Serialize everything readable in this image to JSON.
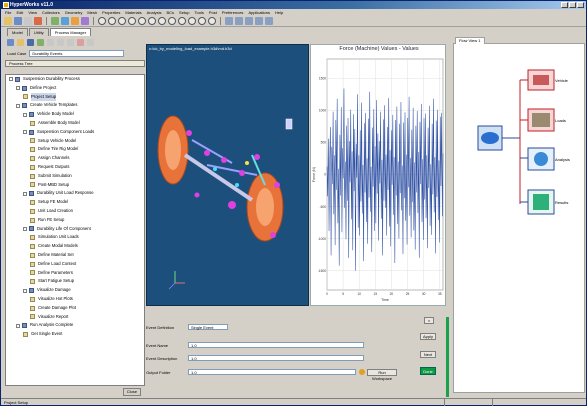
{
  "window": {
    "title": "HyperWorks v11.0"
  },
  "menu": [
    "File",
    "Edit",
    "View",
    "Collectors",
    "Geometry",
    "Mesh",
    "Properties",
    "Materials",
    "Analysis",
    "BCs",
    "Setup",
    "Tools",
    "Post",
    "Preferences",
    "Applications",
    "Help"
  ],
  "left_panel": {
    "tabs": [
      "Model",
      "Utility",
      "Process Manager"
    ],
    "load_label": "Load Case",
    "load_value": "Durability Events",
    "tree_header": "Process Tree",
    "close_label": "Close",
    "tree": [
      {
        "label": "Suspension Durability Process",
        "level": 0,
        "kind": "folder"
      },
      {
        "label": "Define Project",
        "level": 1,
        "kind": "folder"
      },
      {
        "label": "Project Setup",
        "level": 2,
        "kind": "leaf",
        "selected": true
      },
      {
        "label": "Create Vehicle Templates",
        "level": 1,
        "kind": "folder"
      },
      {
        "label": "Vehicle Body Model",
        "level": 2,
        "kind": "folder"
      },
      {
        "label": "Assemble Body Model",
        "level": 3,
        "kind": "leaf"
      },
      {
        "label": "Suspension Component Loads",
        "level": 2,
        "kind": "folder"
      },
      {
        "label": "Setup Vehicle Model",
        "level": 3,
        "kind": "leaf"
      },
      {
        "label": "Define Tire Rig Model",
        "level": 3,
        "kind": "leaf"
      },
      {
        "label": "Assign Channels",
        "level": 3,
        "kind": "leaf"
      },
      {
        "label": "Request Outputs",
        "level": 3,
        "kind": "leaf"
      },
      {
        "label": "Submit Simulation",
        "level": 3,
        "kind": "leaf"
      },
      {
        "label": "Post-MBD Setup",
        "level": 3,
        "kind": "leaf"
      },
      {
        "label": "Durability Unit Load Response",
        "level": 2,
        "kind": "folder"
      },
      {
        "label": "Setup FE Model",
        "level": 3,
        "kind": "leaf"
      },
      {
        "label": "Unit Load Creation",
        "level": 3,
        "kind": "leaf"
      },
      {
        "label": "Run FE Setup",
        "level": 3,
        "kind": "leaf"
      },
      {
        "label": "Durability Life Of Component",
        "level": 2,
        "kind": "folder"
      },
      {
        "label": "Simulation Unit Loads",
        "level": 3,
        "kind": "leaf"
      },
      {
        "label": "Create Modal Models",
        "level": 3,
        "kind": "leaf"
      },
      {
        "label": "Define Material Set",
        "level": 3,
        "kind": "leaf"
      },
      {
        "label": "Define Load Context",
        "level": 3,
        "kind": "leaf"
      },
      {
        "label": "Define Parameters",
        "level": 3,
        "kind": "leaf"
      },
      {
        "label": "Start Fatigue Setup",
        "level": 3,
        "kind": "leaf"
      },
      {
        "label": "Visualize Damage",
        "level": 2,
        "kind": "folder"
      },
      {
        "label": "Visualize Hot Plots",
        "level": 3,
        "kind": "leaf"
      },
      {
        "label": "Create Damage Plot",
        "level": 3,
        "kind": "leaf"
      },
      {
        "label": "Visualize Report",
        "level": 3,
        "kind": "leaf"
      },
      {
        "label": "Run Analysis Complete",
        "level": 1,
        "kind": "folder"
      },
      {
        "label": "Get Single Event",
        "level": 2,
        "kind": "leaf"
      }
    ]
  },
  "graphics": {
    "title": "c:\\dc_by_modeling_load_example.h3d\\md.h3d"
  },
  "plot": {
    "title": "Force (Machine) Values - Values",
    "xlabel": "Time",
    "ylabel": "Force (N)"
  },
  "chart_data": {
    "type": "line",
    "title": "Force (Machine) Values - Values",
    "xlabel": "Time",
    "ylabel": "Force (N)",
    "x_ticks": [
      "0",
      "5",
      "10",
      "15",
      "20",
      "25",
      "30",
      "35"
    ],
    "y_ticks": [
      "-1500",
      "-1000",
      "-500",
      "0",
      "500",
      "1000",
      "1500"
    ],
    "ylim": [
      -1800,
      1800
    ],
    "xlim": [
      0,
      36
    ],
    "grid": true,
    "series": [
      {
        "color": "#2d4fa3",
        "values": [
          120,
          -340,
          560,
          -880,
          210,
          740,
          -1260,
          430,
          -150,
          980,
          -620,
          300,
          -1100,
          850,
          -240,
          1180,
          -760,
          90,
          -1420,
          620,
          -330,
          1050,
          -900,
          410,
          -60,
          1340,
          -520,
          200,
          -1010,
          760,
          -410,
          880,
          -1300,
          520,
          -120,
          1010,
          -700,
          360,
          -1180,
          940,
          -260,
          710,
          -1500,
          480,
          -50,
          1250,
          -830,
          300,
          -950,
          690,
          -420,
          1120,
          -610,
          150,
          -1350,
          800,
          -280,
          960,
          -740,
          250,
          -1080,
          870,
          -360,
          1290,
          -580,
          120,
          -1210,
          730,
          -190,
          1020,
          -880,
          440,
          -760,
          1160,
          -300,
          640,
          -1030,
          520,
          -140,
          980,
          -690,
          230,
          -1260,
          860,
          -410,
          1080,
          -520,
          310,
          -950,
          740,
          -240,
          1190,
          -810,
          380,
          -1120,
          690,
          -160,
          930,
          -630,
          270,
          -1380,
          850,
          -330,
          1060,
          -770,
          200,
          -1000,
          790,
          -290,
          1130,
          -560,
          140,
          -1240,
          810,
          -370,
          970,
          -720,
          310,
          -1090,
          880,
          -200,
          1210,
          -640,
          260,
          -980,
          700,
          -430,
          1040,
          -870,
          190,
          -1170,
          760,
          -280,
          990,
          -600,
          350,
          -1300,
          820,
          -150,
          1100,
          -740,
          240,
          -1020,
          880,
          -390,
          950,
          -680,
          300,
          -1150,
          730,
          -210,
          1070,
          -800,
          160,
          -940,
          790,
          -310,
          1180,
          -590,
          270,
          -1230,
          840,
          -350,
          1010,
          -710,
          220,
          -1060,
          900,
          -180,
          960,
          -650,
          330
        ]
      }
    ]
  },
  "form": {
    "event_label": "Event Definition",
    "event_value": "Single Event",
    "field1_label": "Event Name",
    "field1_value": "1.0",
    "field2_label": "Event Description",
    "field2_value": "1.0",
    "field3_label": "Output Folder",
    "field3_value": "1.0",
    "btn_top": "Apply",
    "btn_mid": "Next",
    "btn_bot": "Run Workspace",
    "btn_green": "Done",
    "x_label": "×"
  },
  "right_panel": {
    "tab": "Flow View 1",
    "nodes": [
      "Vehicle",
      "Loads",
      "Analysis",
      "Results"
    ]
  },
  "status": {
    "text": "Project Setup"
  },
  "colors": {
    "accent": "#0a246a",
    "green": "#19a24a",
    "gfx_bg": "#1d4f7c",
    "tire": "#e8733a"
  }
}
